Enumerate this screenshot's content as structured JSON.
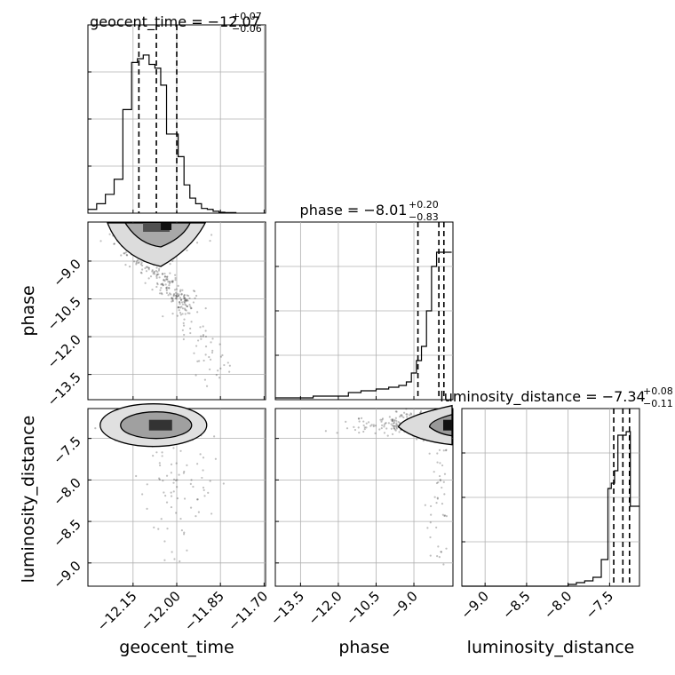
{
  "chart_data": {
    "type": "corner",
    "parameters": [
      "geocent_time",
      "phase",
      "luminosity_distance"
    ],
    "panel_titles": [
      {
        "text": "geocent_time = −12.07",
        "upper": "+0.07",
        "lower": "−0.06"
      },
      {
        "text": "phase = −8.01",
        "upper": "+0.20",
        "lower": "−0.83"
      },
      {
        "text": "luminosity_distance = −7.34",
        "upper": "+0.08",
        "lower": "−0.11"
      }
    ],
    "ranges": {
      "geocent_time": [
        -12.305,
        -11.695
      ],
      "phase": [
        -14.5,
        -7.45
      ],
      "luminosity_distance": [
        -9.28,
        -7.14
      ]
    },
    "ticks": {
      "geocent_time": {
        "values": [
          -12.15,
          -12.0,
          -11.85,
          -11.7
        ],
        "labels": [
          "−12.15",
          "−12.00",
          "−11.85",
          "−11.70"
        ]
      },
      "phase": {
        "values": [
          -13.5,
          -12.0,
          -10.5,
          -9.0
        ],
        "labels": [
          "−13.5",
          "−12.0",
          "−10.5",
          "−9.0"
        ]
      },
      "luminosity_distance": {
        "values": [
          -9.0,
          -8.5,
          -8.0,
          -7.5
        ],
        "labels": [
          "−9.0",
          "−8.5",
          "−8.0",
          "−7.5"
        ]
      }
    },
    "quantile_lines": {
      "geocent_time": [
        -12.13,
        -12.07,
        -12.0
      ],
      "phase": [
        -8.84,
        -8.01,
        -7.81
      ],
      "luminosity_distance": [
        -7.45,
        -7.34,
        -7.26
      ]
    },
    "histograms": {
      "geocent_time": {
        "edges": [
          -12.305,
          -12.275,
          -12.245,
          -12.215,
          -12.185,
          -12.155,
          -12.135,
          -12.115,
          -12.095,
          -12.075,
          -12.055,
          -12.035,
          -12.015,
          -11.995,
          -11.975,
          -11.955,
          -11.935,
          -11.915,
          -11.895,
          -11.875,
          -11.855,
          -11.835,
          -11.795
        ],
        "counts": [
          0.02,
          0.05,
          0.1,
          0.18,
          0.55,
          0.8,
          0.82,
          0.84,
          0.79,
          0.77,
          0.68,
          0.42,
          0.42,
          0.3,
          0.15,
          0.08,
          0.05,
          0.025,
          0.02,
          0.01,
          0.005,
          0.003
        ]
      },
      "phase": {
        "edges": [
          -14.5,
          -13.0,
          -11.6,
          -11.1,
          -10.5,
          -10.0,
          -9.6,
          -9.3,
          -9.1,
          -8.9,
          -8.7,
          -8.5,
          -8.3,
          -8.1,
          -7.95,
          -7.8,
          -7.5
        ],
        "counts": [
          0.01,
          0.02,
          0.04,
          0.05,
          0.06,
          0.07,
          0.08,
          0.1,
          0.15,
          0.22,
          0.3,
          0.5,
          0.75,
          0.83,
          0.83,
          0.83
        ]
      },
      "luminosity_distance": {
        "edges": [
          -9.28,
          -8.0,
          -7.9,
          -7.8,
          -7.7,
          -7.6,
          -7.52,
          -7.48,
          -7.44,
          -7.4,
          -7.35,
          -7.3,
          -7.25,
          -7.2,
          -7.14
        ],
        "counts": [
          0.0,
          0.01,
          0.02,
          0.03,
          0.05,
          0.15,
          0.55,
          0.58,
          0.65,
          0.85,
          0.85,
          0.87,
          0.45,
          0.45
        ]
      }
    },
    "grid": true,
    "axis_labels": {
      "x": [
        "geocent_time",
        "phase",
        "luminosity_distance"
      ],
      "y": [
        "",
        "phase",
        "luminosity_distance"
      ]
    }
  }
}
